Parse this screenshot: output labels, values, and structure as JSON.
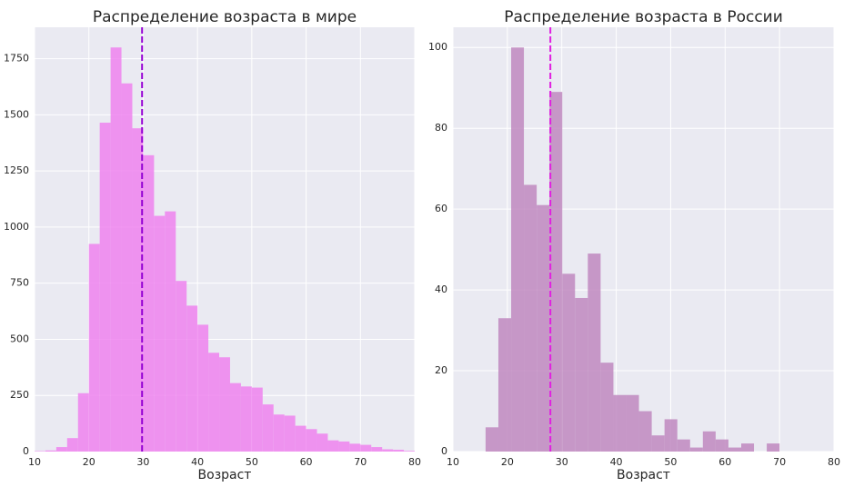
{
  "chart_data": [
    {
      "type": "histogram",
      "title": "Распределение возраста в мире",
      "xlabel": "Возраст",
      "bins": [
        10,
        12,
        14,
        16,
        18,
        20,
        22,
        24,
        26,
        28,
        30,
        32,
        34,
        36,
        38,
        40,
        42,
        44,
        46,
        48,
        50,
        52,
        54,
        56,
        58,
        60,
        62,
        64,
        66,
        68,
        70,
        72,
        74,
        76,
        78,
        80
      ],
      "values": [
        2,
        5,
        20,
        60,
        260,
        925,
        1465,
        1800,
        1640,
        1440,
        1320,
        1050,
        1070,
        760,
        650,
        565,
        440,
        420,
        305,
        290,
        285,
        210,
        165,
        160,
        115,
        100,
        80,
        50,
        45,
        35,
        30,
        20,
        10,
        8,
        3
      ],
      "color": "#ee82ee",
      "vline": 29.8,
      "vline_color": "#9400d3",
      "xlim": [
        10,
        80
      ],
      "xticks": [
        10,
        20,
        30,
        40,
        50,
        60,
        70,
        80
      ],
      "ylim": [
        0,
        1890
      ],
      "yticks": [
        0,
        250,
        500,
        750,
        1000,
        1250,
        1500,
        1750
      ],
      "grid": true
    },
    {
      "type": "histogram",
      "title": "Распределение возраста в России",
      "xlabel": "Возраст",
      "bins": [
        16,
        18.35,
        20.7,
        23.04,
        25.39,
        27.74,
        30.09,
        32.43,
        34.78,
        37.13,
        39.48,
        41.83,
        44.17,
        46.52,
        48.87,
        51.22,
        53.57,
        55.91,
        58.26,
        60.61,
        62.96,
        65.3,
        67.65,
        70
      ],
      "values": [
        6,
        33,
        100,
        66,
        61,
        89,
        44,
        38,
        49,
        22,
        14,
        14,
        10,
        4,
        8,
        3,
        1,
        5,
        3,
        1,
        2,
        0,
        2
      ],
      "color": "#bf88c0",
      "vline": 27.9,
      "vline_color": "#e020e0",
      "xlim": [
        10,
        80
      ],
      "xticks": [
        10,
        20,
        30,
        40,
        50,
        60,
        70,
        80
      ],
      "ylim": [
        0,
        105
      ],
      "yticks": [
        0,
        20,
        40,
        60,
        80,
        100
      ],
      "grid": true
    }
  ]
}
